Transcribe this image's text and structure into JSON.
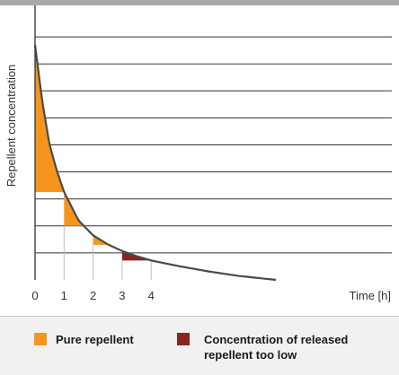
{
  "colors": {
    "background": "#ffffff",
    "top_bar": "#a7a9ac",
    "gridline": "#333333",
    "curve": "#4a4a4a",
    "pure": "#f7941d",
    "too_low": "#8b2320",
    "tick_guide": "#bfbfbf",
    "legend_band": "#f1f1f2"
  },
  "chart_data": {
    "type": "area",
    "title": "",
    "xlabel": "Time [h]",
    "ylabel": "Repellent concentration",
    "x_ticks": [
      "0",
      "1",
      "2",
      "3",
      "4"
    ],
    "xlim": [
      0,
      8.3
    ],
    "ylim": [
      0,
      9
    ],
    "grid": "horizontal",
    "curve": {
      "x": [
        0,
        0.25,
        0.5,
        0.75,
        1,
        1.5,
        2,
        2.5,
        3,
        3.5,
        4,
        5,
        6,
        7,
        8.3
      ],
      "y": [
        8.7,
        6.6,
        5.0,
        4.05,
        3.25,
        2.2,
        1.65,
        1.32,
        1.07,
        0.88,
        0.72,
        0.5,
        0.31,
        0.15,
        0.0
      ]
    },
    "series": [
      {
        "name": "Pure repellent",
        "color": "#f7941d",
        "regions": [
          {
            "x0": 0,
            "x1": 1,
            "floor": 3.25
          },
          {
            "x0": 1,
            "x1": 2,
            "floor": 2.0
          },
          {
            "x0": 2,
            "x1": 3,
            "floor": 1.3
          }
        ]
      },
      {
        "name": "Concentration of released repellent too low",
        "color": "#8b2320",
        "regions": [
          {
            "x0": 3,
            "x1": 4,
            "floor": 0.72
          }
        ]
      }
    ],
    "legend": {
      "position": "bottom",
      "entries": [
        {
          "label": "Pure repellent",
          "color": "#f7941d"
        },
        {
          "label": "Concentration of released repellent too low",
          "color": "#8b2320"
        }
      ]
    }
  },
  "legend": {
    "pure_label": "Pure repellent",
    "low_label_line1": "Concentration of released",
    "low_label_line2": "repellent too low"
  }
}
